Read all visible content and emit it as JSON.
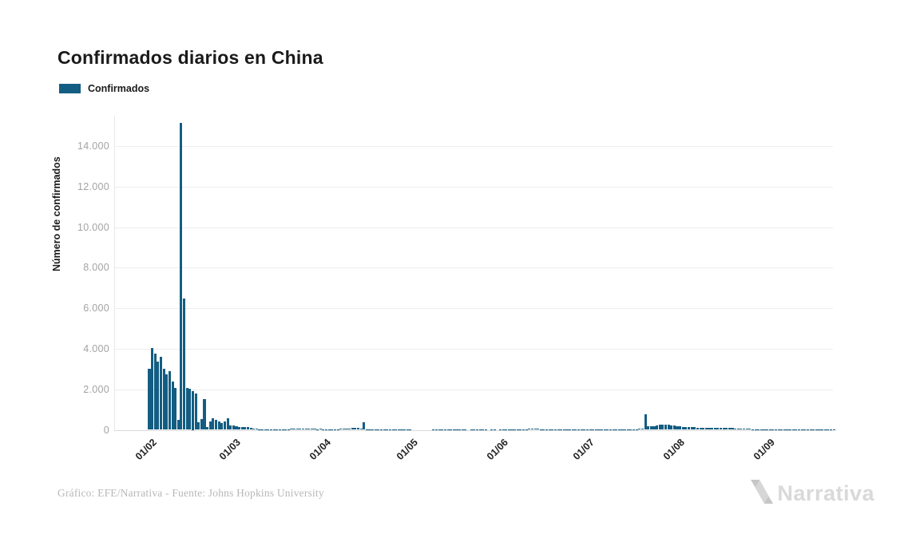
{
  "page": {
    "title": "Confirmados diarios en China"
  },
  "legend": {
    "label": "Confirmados",
    "swatch_color": "#145d82"
  },
  "footer": {
    "source": "Gráfico: EFE/Narrativa - Fuente: Johns Hopkins University"
  },
  "brand": {
    "name": "Narrativa",
    "logo_icon": "narrativa-n-mark"
  },
  "colors": {
    "bar": "#145d82",
    "grid": "#ededed",
    "axis_line": "#d9d9d9",
    "y_tick_text": "#a3a3a3",
    "x_tick_text": "#222222",
    "title_text": "#1a1a1a",
    "footer_text": "#b8b8b8",
    "logo": "#d9d9d9"
  },
  "chart_data": {
    "type": "bar",
    "title": "Confirmados diarios en China",
    "xlabel": "",
    "ylabel": "Número de confirmados",
    "legend_entries": [
      "Confirmados"
    ],
    "legend_position": "top-left",
    "grid": "horizontal",
    "bar_color": "#145d82",
    "start_date": "01/02",
    "frequency": "daily",
    "x_tick_labels": [
      "01/02",
      "01/03",
      "01/04",
      "01/05",
      "01/06",
      "01/07",
      "01/08",
      "01/09"
    ],
    "month_start_indices": [
      0,
      29,
      60,
      90,
      121,
      151,
      182,
      213
    ],
    "y_tick_labels": [
      "0",
      "2.000",
      "4.000",
      "6.000",
      "8.000",
      "10.000",
      "12.000",
      "14.000"
    ],
    "y_tick_values": [
      0,
      2000,
      4000,
      6000,
      8000,
      10000,
      12000,
      14000
    ],
    "ylim": [
      0,
      15500
    ],
    "values": [
      3000,
      4050,
      3750,
      3370,
      3610,
      3000,
      2730,
      2900,
      2400,
      2080,
      510,
      15140,
      6460,
      2060,
      2010,
      1900,
      1780,
      390,
      520,
      1500,
      120,
      430,
      575,
      500,
      430,
      330,
      430,
      570,
      210,
      206,
      180,
      150,
      140,
      125,
      120,
      100,
      45,
      40,
      22,
      26,
      16,
      20,
      10,
      28,
      16,
      22,
      14,
      34,
      39,
      42,
      46,
      40,
      78,
      48,
      67,
      55,
      54,
      45,
      32,
      48,
      36,
      32,
      20,
      30,
      39,
      32,
      62,
      63,
      42,
      46,
      99,
      108,
      90,
      46,
      370,
      26,
      30,
      12,
      11,
      30,
      10,
      6,
      6,
      11,
      3,
      6,
      22,
      4,
      12,
      10,
      12,
      2,
      2,
      1,
      2,
      2,
      1,
      1,
      14,
      20,
      18,
      7,
      6,
      3,
      8,
      6,
      5,
      7,
      8,
      9,
      2,
      4,
      3,
      6,
      11,
      7,
      3,
      2,
      4,
      6,
      2,
      16,
      5,
      4,
      3,
      4,
      6,
      4,
      9,
      3,
      11,
      57,
      49,
      40,
      44,
      28,
      32,
      27,
      30,
      26,
      22,
      19,
      21,
      17,
      21,
      21,
      17,
      19,
      31,
      25,
      20,
      10,
      12,
      10,
      14,
      8,
      12,
      15,
      17,
      13,
      15,
      18,
      24,
      23,
      25,
      21,
      28,
      38,
      35,
      48,
      68,
      780,
      170,
      190,
      180,
      200,
      250,
      260,
      255,
      240,
      220,
      200,
      180,
      160,
      150,
      140,
      130,
      125,
      120,
      115,
      110,
      105,
      110,
      105,
      100,
      105,
      110,
      105,
      100,
      95,
      85,
      80,
      70,
      60,
      55,
      50,
      45,
      40,
      35,
      30,
      28,
      25,
      25,
      30,
      28,
      32,
      25,
      22,
      20,
      25,
      22,
      18,
      20,
      15,
      12,
      15,
      12,
      10,
      12,
      10,
      8,
      10,
      8,
      10,
      8,
      6,
      8
    ]
  }
}
